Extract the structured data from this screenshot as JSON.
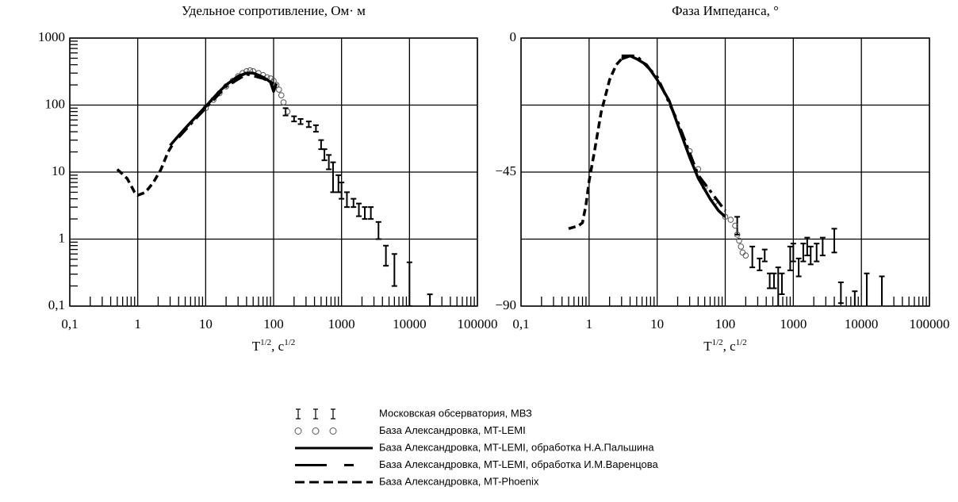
{
  "chart_data": [
    {
      "type": "line",
      "title": "Удельное сопротивление, Ом· м",
      "xlabel_parts": [
        "T",
        "1/2",
        ", c",
        "1/2"
      ],
      "xscale": "log",
      "yscale": "log",
      "grid": true,
      "xlim": [
        0.1,
        100000
      ],
      "ylim": [
        0.1,
        1000
      ],
      "xticks": [
        {
          "value": 0.1,
          "label": "0,1"
        },
        1,
        10,
        100,
        1000,
        10000,
        100000
      ],
      "yticks": [
        {
          "value": 0.1,
          "label": "0,1"
        },
        1,
        10,
        100,
        1000
      ],
      "series": [
        {
          "name": "Московская обсерватория,  МВЗ",
          "style": "errorbar",
          "color": "#000000",
          "x": [
            150,
            200,
            250,
            330,
            420,
            500,
            560,
            650,
            750,
            900,
            1000,
            1200,
            1500,
            1800,
            2200,
            2700,
            3500,
            4500,
            6000,
            10000,
            20000
          ],
          "values": [
            80,
            62,
            57,
            52,
            45,
            25,
            18,
            14,
            9,
            7,
            5,
            4,
            3.5,
            2.8,
            2.6,
            2.4,
            1.3,
            0.6,
            0.35,
            0.15,
            0.12
          ],
          "lower": [
            70,
            57,
            52,
            47,
            40,
            22,
            15,
            11,
            5,
            5,
            4,
            3,
            3,
            2.2,
            2,
            2,
            1,
            0.4,
            0.2,
            0.1,
            0.08
          ],
          "upper": [
            90,
            68,
            62,
            57,
            50,
            30,
            22,
            18,
            14,
            9,
            7,
            5,
            4,
            3.4,
            3,
            3,
            1.8,
            0.8,
            0.6,
            0.45,
            0.15
          ]
        },
        {
          "name": "База Александровка, MT-LEMI",
          "style": "circle",
          "color": "#555555",
          "x": [
            10,
            13,
            16,
            20,
            25,
            30,
            35,
            40,
            45,
            50,
            60,
            70,
            80,
            90,
            100,
            110,
            120,
            130,
            140,
            160
          ],
          "values": [
            90,
            120,
            150,
            190,
            230,
            270,
            300,
            320,
            330,
            320,
            300,
            280,
            260,
            250,
            230,
            200,
            170,
            140,
            110,
            80
          ]
        },
        {
          "name": "База Александровка, MT-LEMI, обработка Н.А.Пальшина",
          "style": "solid",
          "color": "#000000",
          "x": [
            3,
            4,
            5,
            6,
            8,
            10,
            15,
            20,
            30,
            40,
            50,
            60,
            70,
            80,
            90,
            100,
            110
          ],
          "values": [
            25,
            35,
            45,
            55,
            75,
            95,
            150,
            200,
            270,
            300,
            300,
            280,
            260,
            240,
            220,
            160,
            210
          ]
        },
        {
          "name": "База Александровка, MT-LEMI, обработка И.М.Варенцова",
          "style": "dashdot",
          "color": "#000000",
          "x": [
            4,
            6,
            10,
            20,
            40,
            70,
            100
          ],
          "values": [
            33,
            52,
            90,
            190,
            290,
            250,
            210
          ]
        },
        {
          "name": "База Александровка, MT-Phoenix",
          "style": "dash",
          "color": "#000000",
          "x": [
            0.5,
            0.7,
            0.9,
            1,
            1.3,
            1.7,
            2.2,
            2.8,
            3.2
          ],
          "values": [
            11,
            8,
            5,
            4.5,
            5,
            7,
            11,
            20,
            25
          ]
        }
      ]
    },
    {
      "type": "line",
      "title": "Фаза Импеданса, °",
      "xlabel_parts": [
        "T",
        "1/2",
        ", c",
        "1/2"
      ],
      "xscale": "log",
      "yscale": "linear",
      "grid": true,
      "xlim": [
        0.1,
        100000
      ],
      "ylim": [
        -90,
        0
      ],
      "xticks": [
        {
          "value": 0.1,
          "label": "0,1"
        },
        1,
        10,
        100,
        1000,
        10000,
        100000
      ],
      "yticks": [
        0,
        {
          "value": -45,
          "label": "−45"
        },
        {
          "value": -90,
          "label": "−90"
        }
      ],
      "ygrid": [
        -22.5,
        -67.5
      ],
      "series": [
        {
          "style": "errorbar",
          "color": "#000000",
          "x": [
            150,
            250,
            320,
            380,
            450,
            520,
            600,
            680,
            900,
            1000,
            1200,
            1400,
            1600,
            1800,
            2200,
            2700,
            4000,
            5000,
            8000,
            12000,
            20000
          ],
          "values": [
            -63,
            -73,
            -76,
            -73,
            -81,
            -81,
            -82,
            -82,
            -74,
            -72,
            -77,
            -72,
            -70,
            -73,
            -72,
            -70,
            -68,
            -86,
            -89,
            -88,
            -87
          ],
          "lower": [
            -66,
            -77,
            -78,
            -75,
            -84,
            -84,
            -90,
            -86,
            -78,
            -75,
            -80,
            -75,
            -73,
            -76,
            -75,
            -73,
            -72,
            -89,
            -95,
            -95,
            -95
          ],
          "upper": [
            -60,
            -70,
            -74,
            -71,
            -79,
            -79,
            -77,
            -79,
            -70,
            -69,
            -74,
            -69,
            -67,
            -70,
            -69,
            -67,
            -64,
            -82,
            -85,
            -79,
            -80
          ]
        },
        {
          "style": "circle",
          "color": "#555555",
          "x": [
            30,
            40,
            50,
            70,
            100,
            120,
            140,
            150,
            160,
            170,
            180,
            200
          ],
          "values": [
            -38,
            -44,
            -50,
            -55,
            -60,
            -61,
            -63,
            -66,
            -68,
            -70,
            -72,
            -73
          ]
        },
        {
          "style": "solid",
          "color": "#000000",
          "x": [
            3,
            4,
            5,
            7,
            10,
            15,
            20,
            30,
            40,
            60,
            80,
            100
          ],
          "values": [
            -7,
            -6,
            -7,
            -9,
            -14,
            -21,
            -29,
            -40,
            -47,
            -54,
            -58,
            -60
          ]
        },
        {
          "style": "dashdot",
          "color": "#000000",
          "x": [
            3,
            5,
            10,
            20,
            40,
            100
          ],
          "values": [
            -6,
            -6,
            -13,
            -28,
            -46,
            -58
          ]
        },
        {
          "style": "dash",
          "color": "#000000",
          "x": [
            0.5,
            0.7,
            0.8,
            0.9,
            1,
            1.2,
            1.5,
            2,
            2.5,
            3
          ],
          "values": [
            -64,
            -63,
            -62,
            -56,
            -48,
            -38,
            -25,
            -14,
            -9,
            -7
          ]
        }
      ]
    }
  ]
}
